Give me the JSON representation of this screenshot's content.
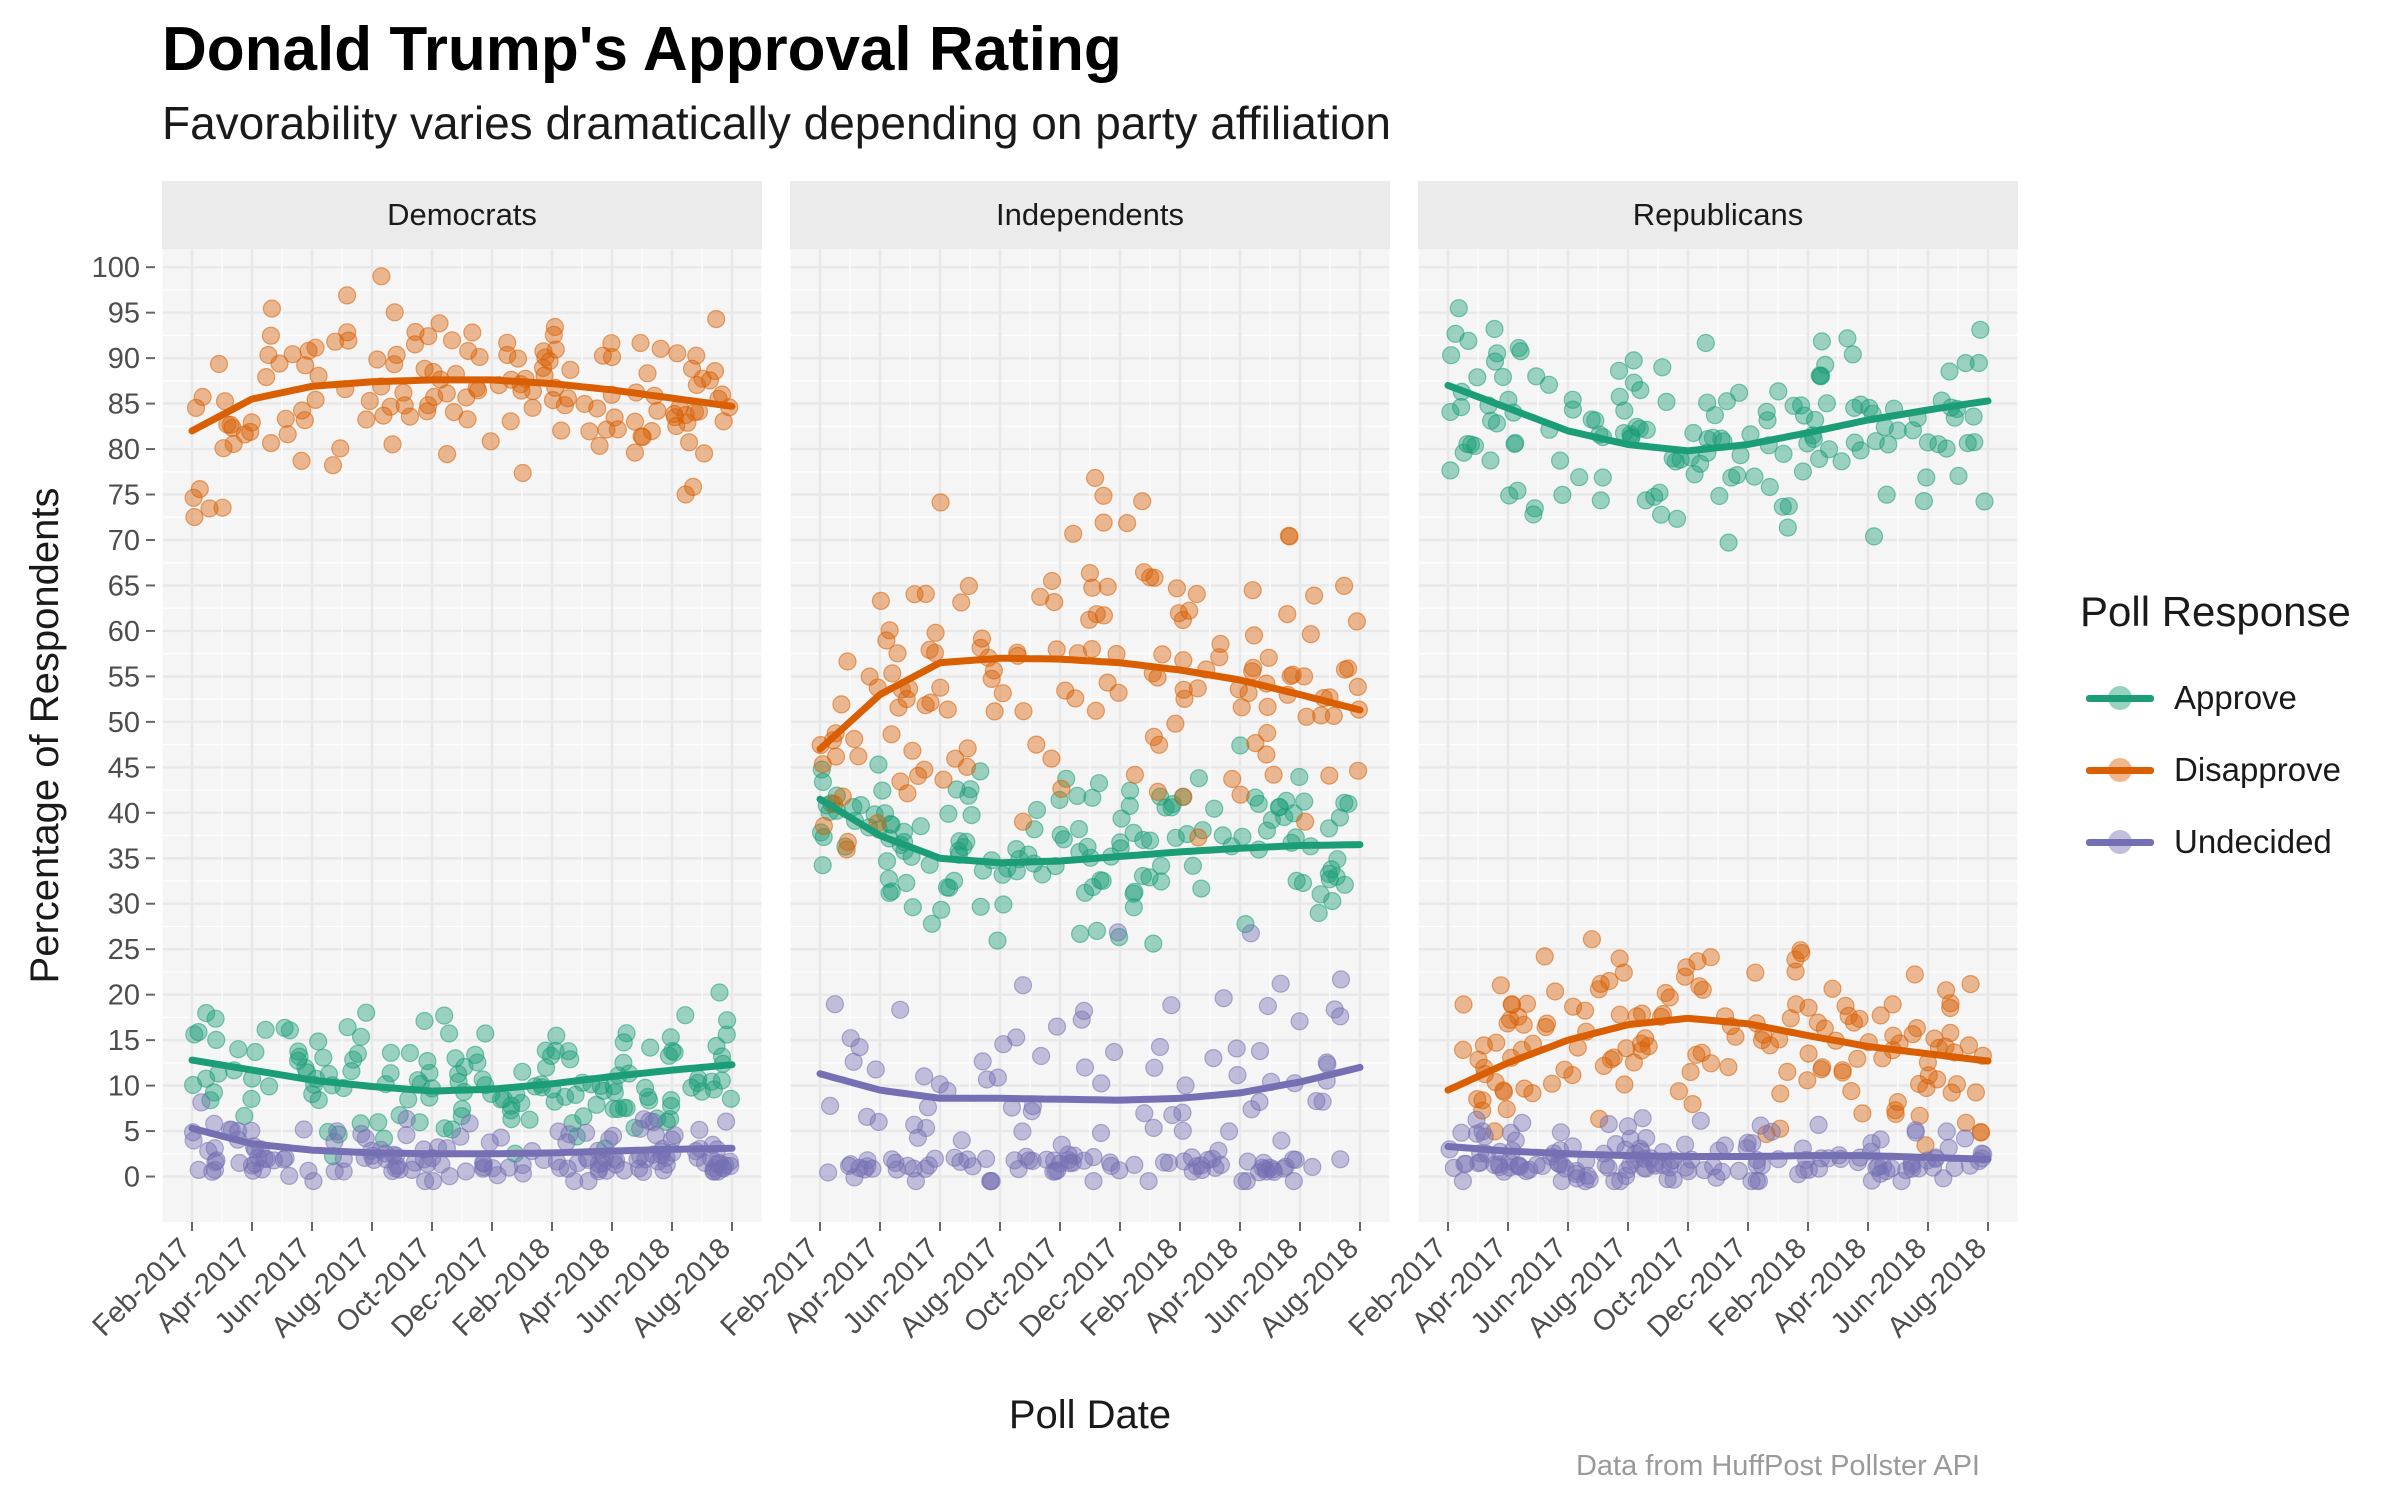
{
  "title": "Donald Trump's Approval Rating",
  "subtitle": "Favorability varies dramatically depending on party affiliation",
  "caption": "Data from HuffPost Pollster API",
  "colors": {
    "Approve": "#1b9e77",
    "Disapprove": "#d95f02",
    "Undecided": "#7570b3"
  },
  "legend": {
    "title": "Poll Response",
    "items": [
      "Approve",
      "Disapprove",
      "Undecided"
    ]
  },
  "chart_data": {
    "type": "scatter",
    "title": "Donald Trump's Approval Rating",
    "xlabel": "Poll Date",
    "ylabel": "Percentage of Respondents",
    "ylim": [
      -5,
      102
    ],
    "yticks": [
      0,
      5,
      10,
      15,
      20,
      25,
      30,
      35,
      40,
      45,
      50,
      55,
      60,
      65,
      70,
      75,
      80,
      85,
      90,
      95,
      100
    ],
    "x_tick_labels": [
      "Feb-2017",
      "Apr-2017",
      "Jun-2017",
      "Aug-2017",
      "Oct-2017",
      "Dec-2017",
      "Feb-2018",
      "Apr-2018",
      "Jun-2018",
      "Aug-2018"
    ],
    "x_range_months": [
      -1,
      19
    ],
    "facets": [
      {
        "name": "Democrats",
        "series": [
          {
            "name": "Approve",
            "trend": [
              [
                0,
                12.8
              ],
              [
                2,
                11.7
              ],
              [
                4,
                10.6
              ],
              [
                6,
                9.9
              ],
              [
                8,
                9.4
              ],
              [
                10,
                9.6
              ],
              [
                12,
                10.2
              ],
              [
                14,
                11.0
              ],
              [
                16,
                11.7
              ],
              [
                18,
                12.3
              ]
            ],
            "spread": 3.5
          },
          {
            "name": "Disapprove",
            "trend": [
              [
                0,
                82.0
              ],
              [
                2,
                85.5
              ],
              [
                4,
                86.9
              ],
              [
                6,
                87.4
              ],
              [
                8,
                87.6
              ],
              [
                10,
                87.6
              ],
              [
                12,
                87.2
              ],
              [
                14,
                86.5
              ],
              [
                16,
                85.6
              ],
              [
                18,
                84.7
              ]
            ],
            "spread": 4.5
          },
          {
            "name": "Undecided",
            "trend": [
              [
                0,
                5.3
              ],
              [
                2,
                3.6
              ],
              [
                4,
                2.9
              ],
              [
                6,
                2.6
              ],
              [
                8,
                2.5
              ],
              [
                10,
                2.5
              ],
              [
                12,
                2.6
              ],
              [
                14,
                2.8
              ],
              [
                16,
                3.0
              ],
              [
                18,
                3.1
              ]
            ],
            "spread": 2.0
          }
        ]
      },
      {
        "name": "Independents",
        "series": [
          {
            "name": "Approve",
            "trend": [
              [
                0,
                41.5
              ],
              [
                2,
                37.5
              ],
              [
                4,
                35.0
              ],
              [
                6,
                34.5
              ],
              [
                8,
                34.7
              ],
              [
                10,
                35.2
              ],
              [
                12,
                35.7
              ],
              [
                14,
                36.1
              ],
              [
                16,
                36.4
              ],
              [
                18,
                36.5
              ]
            ],
            "spread": 5.0
          },
          {
            "name": "Disapprove",
            "trend": [
              [
                0,
                47.0
              ],
              [
                2,
                53.0
              ],
              [
                4,
                56.5
              ],
              [
                6,
                57.0
              ],
              [
                8,
                56.9
              ],
              [
                10,
                56.5
              ],
              [
                12,
                55.7
              ],
              [
                14,
                54.6
              ],
              [
                16,
                53.0
              ],
              [
                18,
                51.3
              ]
            ],
            "spread": 8.0
          },
          {
            "name": "Undecided",
            "trend": [
              [
                0,
                11.3
              ],
              [
                2,
                9.5
              ],
              [
                4,
                8.6
              ],
              [
                6,
                8.6
              ],
              [
                8,
                8.5
              ],
              [
                10,
                8.4
              ],
              [
                12,
                8.6
              ],
              [
                14,
                9.2
              ],
              [
                16,
                10.4
              ],
              [
                18,
                12.0
              ]
            ],
            "spread": 7.0
          }
        ]
      },
      {
        "name": "Republicans",
        "series": [
          {
            "name": "Approve",
            "trend": [
              [
                0,
                87.0
              ],
              [
                2,
                84.5
              ],
              [
                4,
                82.0
              ],
              [
                6,
                80.5
              ],
              [
                8,
                79.8
              ],
              [
                10,
                80.5
              ],
              [
                12,
                81.8
              ],
              [
                14,
                83.2
              ],
              [
                16,
                84.3
              ],
              [
                18,
                85.3
              ]
            ],
            "spread": 5.0
          },
          {
            "name": "Disapprove",
            "trend": [
              [
                0,
                9.5
              ],
              [
                2,
                12.5
              ],
              [
                4,
                15.0
              ],
              [
                6,
                16.7
              ],
              [
                8,
                17.4
              ],
              [
                10,
                16.8
              ],
              [
                12,
                15.5
              ],
              [
                14,
                14.3
              ],
              [
                16,
                13.5
              ],
              [
                18,
                12.7
              ]
            ],
            "spread": 4.5
          },
          {
            "name": "Undecided",
            "trend": [
              [
                0,
                3.3
              ],
              [
                2,
                2.8
              ],
              [
                4,
                2.5
              ],
              [
                6,
                2.3
              ],
              [
                8,
                2.2
              ],
              [
                10,
                2.2
              ],
              [
                12,
                2.3
              ],
              [
                14,
                2.3
              ],
              [
                16,
                2.1
              ],
              [
                18,
                1.9
              ]
            ],
            "spread": 2.0
          }
        ]
      }
    ]
  }
}
